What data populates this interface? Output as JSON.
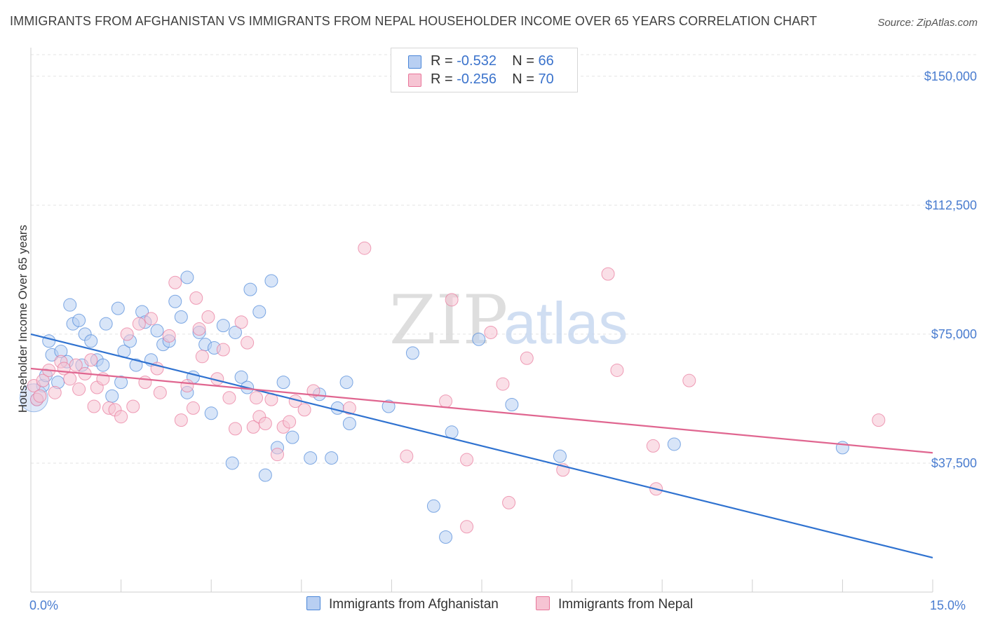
{
  "title": "IMMIGRANTS FROM AFGHANISTAN VS IMMIGRANTS FROM NEPAL HOUSEHOLDER INCOME OVER 65 YEARS CORRELATION CHART",
  "source": "Source: ZipAtlas.com",
  "watermark": {
    "zip": "ZIP",
    "atlas": "atlas"
  },
  "legend": {
    "r_label": "R =",
    "n_label": "N =",
    "rows": [
      {
        "r": "-0.532",
        "n": "66"
      },
      {
        "r": "-0.256",
        "n": "70"
      }
    ]
  },
  "chart_data": {
    "type": "scatter",
    "ylabel": "Householder Income Over 65 years",
    "xlim": [
      0,
      15
    ],
    "ylim": [
      0,
      157500
    ],
    "y_ticks": [
      {
        "value": 37500,
        "label": "$37,500"
      },
      {
        "value": 75000,
        "label": "$75,000"
      },
      {
        "value": 112500,
        "label": "$112,500"
      },
      {
        "value": 150000,
        "label": "$150,000"
      }
    ],
    "x_tick_labels": {
      "min": "0.0%",
      "max": "15.0%"
    },
    "legend_placement": "bottom-center",
    "grid": true,
    "series": [
      {
        "name": "Immigrants from Afghanistan",
        "color": "#4a86d8",
        "fill": "#b8cff2",
        "r": -0.532,
        "n": 66,
        "trend": {
          "x": [
            0,
            15
          ],
          "y": [
            75000,
            10000
          ]
        },
        "points": [
          [
            0.1,
            56000
          ],
          [
            0.2,
            60000
          ],
          [
            0.25,
            63000
          ],
          [
            0.3,
            73000
          ],
          [
            0.35,
            69000
          ],
          [
            0.45,
            61000
          ],
          [
            0.5,
            70000
          ],
          [
            0.6,
            67000
          ],
          [
            0.65,
            83500
          ],
          [
            0.7,
            78000
          ],
          [
            0.8,
            79000
          ],
          [
            0.85,
            66000
          ],
          [
            0.9,
            75000
          ],
          [
            1.0,
            73000
          ],
          [
            1.1,
            67500
          ],
          [
            1.2,
            66000
          ],
          [
            1.25,
            78000
          ],
          [
            1.35,
            57000
          ],
          [
            1.45,
            82500
          ],
          [
            1.55,
            70000
          ],
          [
            1.65,
            73000
          ],
          [
            1.75,
            66000
          ],
          [
            1.85,
            81500
          ],
          [
            1.9,
            78500
          ],
          [
            2.0,
            67500
          ],
          [
            2.1,
            76000
          ],
          [
            2.2,
            72000
          ],
          [
            2.3,
            73000
          ],
          [
            2.4,
            84500
          ],
          [
            2.5,
            80000
          ],
          [
            2.6,
            91500
          ],
          [
            2.7,
            62500
          ],
          [
            2.8,
            75500
          ],
          [
            2.9,
            72000
          ],
          [
            3.0,
            52000
          ],
          [
            3.05,
            71000
          ],
          [
            3.2,
            77500
          ],
          [
            3.35,
            37500
          ],
          [
            3.4,
            75500
          ],
          [
            3.5,
            62500
          ],
          [
            3.6,
            59500
          ],
          [
            3.65,
            88000
          ],
          [
            3.8,
            81500
          ],
          [
            3.9,
            34000
          ],
          [
            4.0,
            90500
          ],
          [
            4.1,
            42000
          ],
          [
            4.2,
            61000
          ],
          [
            4.35,
            45000
          ],
          [
            4.65,
            39000
          ],
          [
            4.8,
            57500
          ],
          [
            5.0,
            39000
          ],
          [
            5.1,
            53500
          ],
          [
            5.25,
            61000
          ],
          [
            5.3,
            49000
          ],
          [
            5.95,
            54000
          ],
          [
            6.35,
            69500
          ],
          [
            6.7,
            25000
          ],
          [
            6.9,
            16000
          ],
          [
            7.0,
            46500
          ],
          [
            7.45,
            73500
          ],
          [
            8.0,
            54500
          ],
          [
            8.8,
            39500
          ],
          [
            10.7,
            43000
          ],
          [
            13.5,
            42000
          ],
          [
            1.5,
            61000
          ],
          [
            2.6,
            58000
          ]
        ]
      },
      {
        "name": "Immigrants from Nepal",
        "color": "#e8769a",
        "fill": "#f6c4d3",
        "r": -0.256,
        "n": 70,
        "trend": {
          "x": [
            0,
            15
          ],
          "y": [
            65000,
            40500
          ]
        },
        "points": [
          [
            0.05,
            60000
          ],
          [
            0.1,
            56000
          ],
          [
            0.15,
            57000
          ],
          [
            0.2,
            61500
          ],
          [
            0.3,
            64500
          ],
          [
            0.4,
            58000
          ],
          [
            0.5,
            67000
          ],
          [
            0.55,
            65000
          ],
          [
            0.65,
            62000
          ],
          [
            0.75,
            66000
          ],
          [
            0.8,
            59000
          ],
          [
            0.9,
            63500
          ],
          [
            1.0,
            67500
          ],
          [
            1.05,
            54000
          ],
          [
            1.1,
            59500
          ],
          [
            1.2,
            62000
          ],
          [
            1.3,
            53500
          ],
          [
            1.4,
            53000
          ],
          [
            1.5,
            51000
          ],
          [
            1.6,
            75000
          ],
          [
            1.7,
            54000
          ],
          [
            1.8,
            78000
          ],
          [
            1.9,
            61000
          ],
          [
            2.0,
            79500
          ],
          [
            2.1,
            65000
          ],
          [
            2.15,
            58000
          ],
          [
            2.3,
            74500
          ],
          [
            2.4,
            90000
          ],
          [
            2.5,
            50000
          ],
          [
            2.6,
            60000
          ],
          [
            2.7,
            53500
          ],
          [
            2.75,
            85500
          ],
          [
            2.85,
            68500
          ],
          [
            2.95,
            80000
          ],
          [
            3.1,
            62000
          ],
          [
            3.2,
            70500
          ],
          [
            3.3,
            56500
          ],
          [
            3.4,
            47500
          ],
          [
            3.5,
            78500
          ],
          [
            3.6,
            72500
          ],
          [
            3.7,
            48000
          ],
          [
            3.75,
            56500
          ],
          [
            3.8,
            51000
          ],
          [
            3.9,
            49000
          ],
          [
            4.0,
            56000
          ],
          [
            4.1,
            40000
          ],
          [
            4.2,
            48000
          ],
          [
            4.3,
            49500
          ],
          [
            4.4,
            55500
          ],
          [
            4.55,
            53000
          ],
          [
            4.7,
            58500
          ],
          [
            5.3,
            53500
          ],
          [
            5.55,
            100000
          ],
          [
            6.25,
            39500
          ],
          [
            6.9,
            55500
          ],
          [
            7.0,
            85000
          ],
          [
            7.25,
            19000
          ],
          [
            7.25,
            38500
          ],
          [
            7.65,
            75500
          ],
          [
            7.85,
            60500
          ],
          [
            7.95,
            26000
          ],
          [
            8.25,
            68000
          ],
          [
            8.85,
            35500
          ],
          [
            9.6,
            92500
          ],
          [
            9.75,
            64500
          ],
          [
            10.35,
            42500
          ],
          [
            10.4,
            30000
          ],
          [
            10.95,
            61500
          ],
          [
            14.1,
            50000
          ],
          [
            2.8,
            76500
          ]
        ]
      }
    ]
  }
}
